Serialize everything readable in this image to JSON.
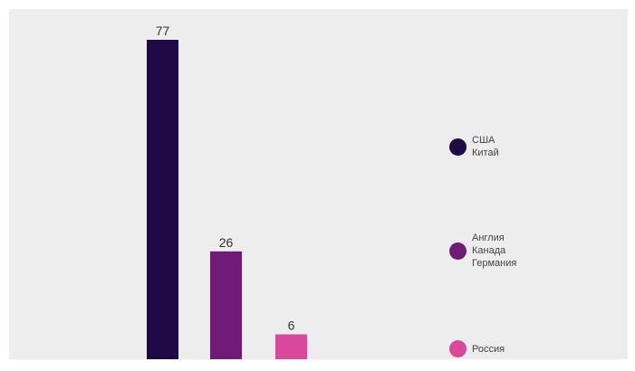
{
  "chart_data": {
    "type": "bar",
    "categories": [
      "США, Китай",
      "Англия, Канада, Германия",
      "Россия"
    ],
    "values": [
      77,
      26,
      6
    ],
    "ylim": [
      0,
      77
    ],
    "grid": false,
    "legend_placement": "right",
    "colors": [
      "#1f0a45",
      "#701c76",
      "#d9499b"
    ],
    "legend": [
      {
        "labels": [
          "США",
          "Китай"
        ],
        "color": "#1f0a45"
      },
      {
        "labels": [
          "Англия",
          "Канада",
          "Германия"
        ],
        "color": "#701c76"
      },
      {
        "labels": [
          "Россия"
        ],
        "color": "#d9499b"
      }
    ]
  }
}
